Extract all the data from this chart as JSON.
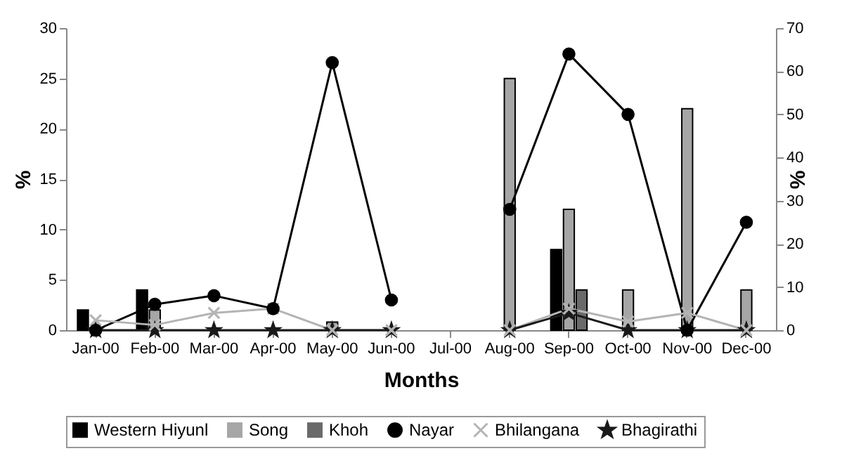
{
  "chart_data": {
    "type": "bar",
    "xlabel": "Months",
    "ylabel": "%",
    "y2label": "%",
    "categories": [
      "Jan-00",
      "Feb-00",
      "Mar-00",
      "Apr-00",
      "May-00",
      "Jun-00",
      "Jul-00",
      "Aug-00",
      "Sep-00",
      "Oct-00",
      "Nov-00",
      "Dec-00"
    ],
    "series": [
      {
        "name": "Western Hiyunl",
        "color": "#000000",
        "values": [
          2,
          4,
          null,
          null,
          null,
          null,
          null,
          null,
          8,
          null,
          null,
          null
        ]
      },
      {
        "name": "Song",
        "color": "#a6a6a6",
        "values": [
          null,
          2,
          null,
          null,
          0.8,
          null,
          null,
          25,
          12,
          4,
          22,
          4
        ]
      },
      {
        "name": "Khoh",
        "color": "#6a6a6a",
        "values": [
          null,
          null,
          null,
          null,
          null,
          null,
          null,
          null,
          4,
          null,
          null,
          null
        ]
      },
      {
        "name": "Nayar",
        "type": "line",
        "axis": "y2",
        "marker": "circle",
        "color": "#000000",
        "values": [
          0,
          6,
          8,
          5,
          62,
          7,
          null,
          28,
          64,
          50,
          0,
          25
        ]
      },
      {
        "name": "Bhilangana",
        "type": "line",
        "axis": "y2",
        "marker": "cross",
        "color": "#b4b4b4",
        "values": [
          2.3,
          1.2,
          4,
          5,
          0,
          0,
          null,
          0,
          5,
          2,
          4,
          0
        ]
      },
      {
        "name": "Bhagirathi",
        "type": "line",
        "axis": "y2",
        "marker": "star",
        "color": "#1a1a1a",
        "values": [
          0,
          0,
          0,
          0,
          0,
          0,
          null,
          0,
          4,
          0,
          0,
          0
        ]
      }
    ],
    "ylim": [
      0,
      30
    ],
    "yticks": [
      0,
      5,
      10,
      15,
      20,
      25,
      30
    ],
    "y2lim": [
      0,
      70
    ],
    "y2ticks": [
      0,
      10,
      20,
      30,
      40,
      50,
      60,
      70
    ],
    "legend": "bottom",
    "line_style": "solid"
  }
}
